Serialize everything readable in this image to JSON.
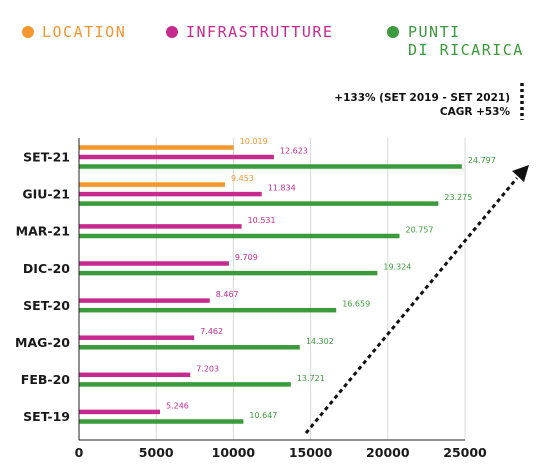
{
  "colors": {
    "location": "#F5962F",
    "infrastrutture": "#C72A8F",
    "punti_di_ricarica": "#3B9A3B",
    "grid": "#d8d8d8",
    "axis": "#222222"
  },
  "legend": [
    {
      "key": "location",
      "lines": [
        "LOCATION"
      ]
    },
    {
      "key": "infrastrutture",
      "lines": [
        "INFRASTRUTTURE"
      ]
    },
    {
      "key": "punti_di_ricarica",
      "lines": [
        "PUNTI",
        "DI RICARICA"
      ]
    }
  ],
  "annotation": {
    "line1": "+133% (SET 2019 - SET 2021)",
    "line2": "CAGR +53%"
  },
  "chart_data": {
    "type": "bar",
    "orientation": "horizontal",
    "categories": [
      "SET-21",
      "GIU-21",
      "MAR-21",
      "DIC-20",
      "SET-20",
      "MAG-20",
      "FEB-20",
      "SET-19"
    ],
    "series": [
      {
        "name": "LOCATION",
        "key": "location",
        "values": [
          10019,
          9453,
          null,
          null,
          null,
          null,
          null,
          null
        ],
        "labels": [
          "10.019",
          "9.453",
          null,
          null,
          null,
          null,
          null,
          null
        ]
      },
      {
        "name": "INFRASTRUTTURE",
        "key": "infrastrutture",
        "values": [
          12623,
          11834,
          10531,
          9709,
          8467,
          7462,
          7203,
          5246
        ],
        "labels": [
          "12.623",
          "11.834",
          "10.531",
          "9.709",
          "8.467",
          "7.462",
          "7.203",
          "5.246"
        ]
      },
      {
        "name": "PUNTI DI RICARICA",
        "key": "punti_di_ricarica",
        "values": [
          24797,
          23275,
          20757,
          19324,
          16659,
          14302,
          13721,
          10647
        ],
        "labels": [
          "24.797",
          "23.275",
          "20.757",
          "19.324",
          "16.659",
          "14.302",
          "13.721",
          "10.647"
        ]
      }
    ],
    "xlim": [
      0,
      25000
    ],
    "xticks": [
      0,
      5000,
      10000,
      15000,
      20000,
      25000
    ],
    "xtick_labels": [
      "0",
      "5000",
      "10000",
      "15000",
      "20000",
      "25000"
    ],
    "grid": true,
    "legend_position": "top"
  }
}
